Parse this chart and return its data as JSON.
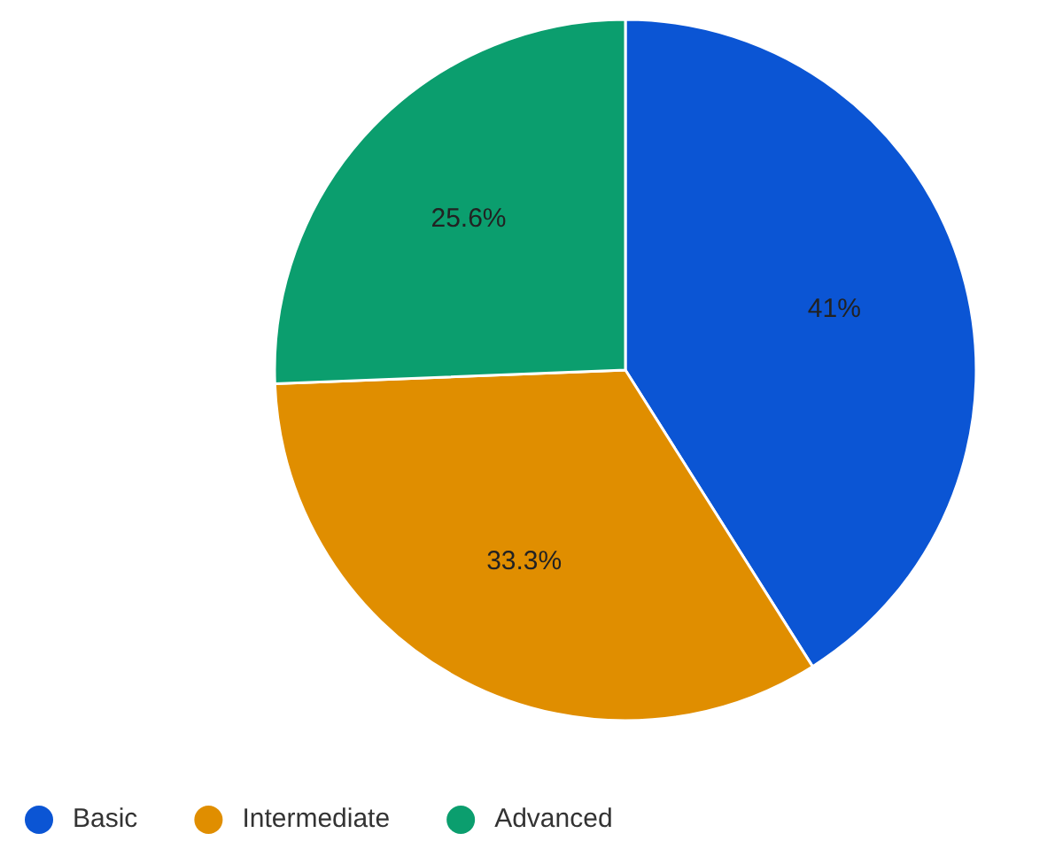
{
  "chart_data": {
    "type": "pie",
    "categories": [
      "Basic",
      "Intermediate",
      "Advanced"
    ],
    "values": [
      41,
      33.3,
      25.6
    ],
    "colors": [
      "#0b55d4",
      "#e08e00",
      "#0b9e6e"
    ],
    "value_labels": [
      "41%",
      "33.3%",
      "25.6%"
    ],
    "legend": "bottom"
  }
}
